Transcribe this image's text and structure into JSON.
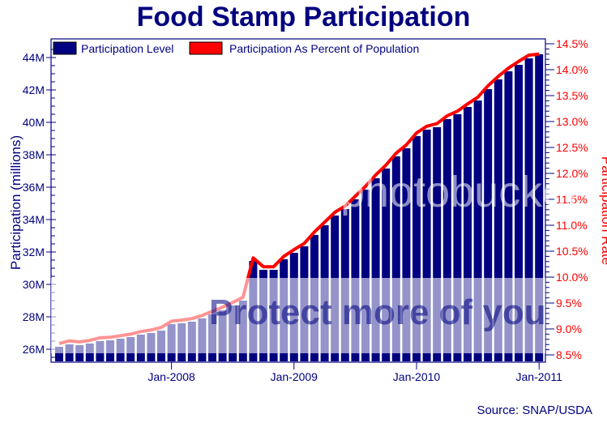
{
  "title": "Food Stamp Participation",
  "source": "Source: SNAP/USDA",
  "watermark": {
    "top_text": "photobucket",
    "band_text": "Protect more of your memories for less"
  },
  "chart_data": {
    "type": "bar+line",
    "title": "Food Stamp Participation",
    "xlabel": "",
    "ylabel": "Participation (millions)",
    "y2label": "Participation Rate",
    "ylim": [
      25.5,
      44.5
    ],
    "y2lim": [
      8.5,
      14.5
    ],
    "grid": false,
    "legend_position": "top-left inside",
    "x_tick_labels": [
      "Jan-2008",
      "Jan-2009",
      "Jan-2010",
      "Jan-2011"
    ],
    "y_tick_labels": [
      "26M",
      "28M",
      "30M",
      "32M",
      "34M",
      "36M",
      "38M",
      "40M",
      "42M",
      "44M"
    ],
    "y2_tick_labels": [
      "8.5%",
      "9.0%",
      "9.5%",
      "10.0%",
      "10.5%",
      "11.0%",
      "11.5%",
      "12.0%",
      "12.5%",
      "13.0%",
      "13.5%",
      "14.0%",
      "14.5%"
    ],
    "categories": [
      "Feb-2007",
      "Mar-2007",
      "Apr-2007",
      "May-2007",
      "Jun-2007",
      "Jul-2007",
      "Aug-2007",
      "Sep-2007",
      "Oct-2007",
      "Nov-2007",
      "Dec-2007",
      "Jan-2008",
      "Feb-2008",
      "Mar-2008",
      "Apr-2008",
      "May-2008",
      "Jun-2008",
      "Jul-2008",
      "Aug-2008",
      "Sep-2008",
      "Oct-2008",
      "Nov-2008",
      "Dec-2008",
      "Jan-2009",
      "Feb-2009",
      "Mar-2009",
      "Apr-2009",
      "May-2009",
      "Jun-2009",
      "Jul-2009",
      "Aug-2009",
      "Sep-2009",
      "Oct-2009",
      "Nov-2009",
      "Dec-2009",
      "Jan-2010",
      "Feb-2010",
      "Mar-2010",
      "Apr-2010",
      "May-2010",
      "Jun-2010",
      "Jul-2010",
      "Aug-2010",
      "Sep-2010",
      "Oct-2010",
      "Nov-2010",
      "Dec-2010",
      "Jan-2011"
    ],
    "series": [
      {
        "name": "Participation Level",
        "type": "bar",
        "axis": "left",
        "unit": "millions",
        "color": "#000080",
        "values": [
          26.15,
          26.3,
          26.25,
          26.35,
          26.5,
          26.55,
          26.65,
          26.75,
          26.9,
          27.0,
          27.15,
          27.55,
          27.6,
          27.7,
          27.9,
          28.15,
          28.4,
          28.7,
          29.0,
          31.45,
          30.9,
          30.9,
          31.55,
          31.95,
          32.35,
          33.05,
          33.65,
          34.25,
          34.65,
          35.25,
          35.85,
          36.55,
          37.15,
          37.9,
          38.4,
          39.15,
          39.55,
          39.7,
          40.2,
          40.5,
          40.95,
          41.35,
          42.05,
          42.65,
          43.15,
          43.55,
          43.95,
          44.2
        ]
      },
      {
        "name": "Participation As Percent of Population",
        "type": "line",
        "axis": "right",
        "unit": "percent",
        "color": "#ff0000",
        "values": [
          8.72,
          8.77,
          8.75,
          8.78,
          8.83,
          8.84,
          8.87,
          8.9,
          8.95,
          8.98,
          9.03,
          9.15,
          9.17,
          9.2,
          9.26,
          9.34,
          9.42,
          9.51,
          9.61,
          10.37,
          10.2,
          10.2,
          10.4,
          10.53,
          10.65,
          10.87,
          11.06,
          11.25,
          11.37,
          11.56,
          11.75,
          11.97,
          12.16,
          12.39,
          12.55,
          12.78,
          12.91,
          12.96,
          13.11,
          13.2,
          13.34,
          13.47,
          13.69,
          13.87,
          14.03,
          14.16,
          14.28,
          14.3
        ]
      }
    ]
  },
  "legend": [
    {
      "label": "Participation Level",
      "color": "#000080"
    },
    {
      "label": "Participation As Percent of Population",
      "color": "#ff0000"
    }
  ],
  "axes": {
    "left_label": "Participation (millions)",
    "right_label": "Participation Rate"
  }
}
